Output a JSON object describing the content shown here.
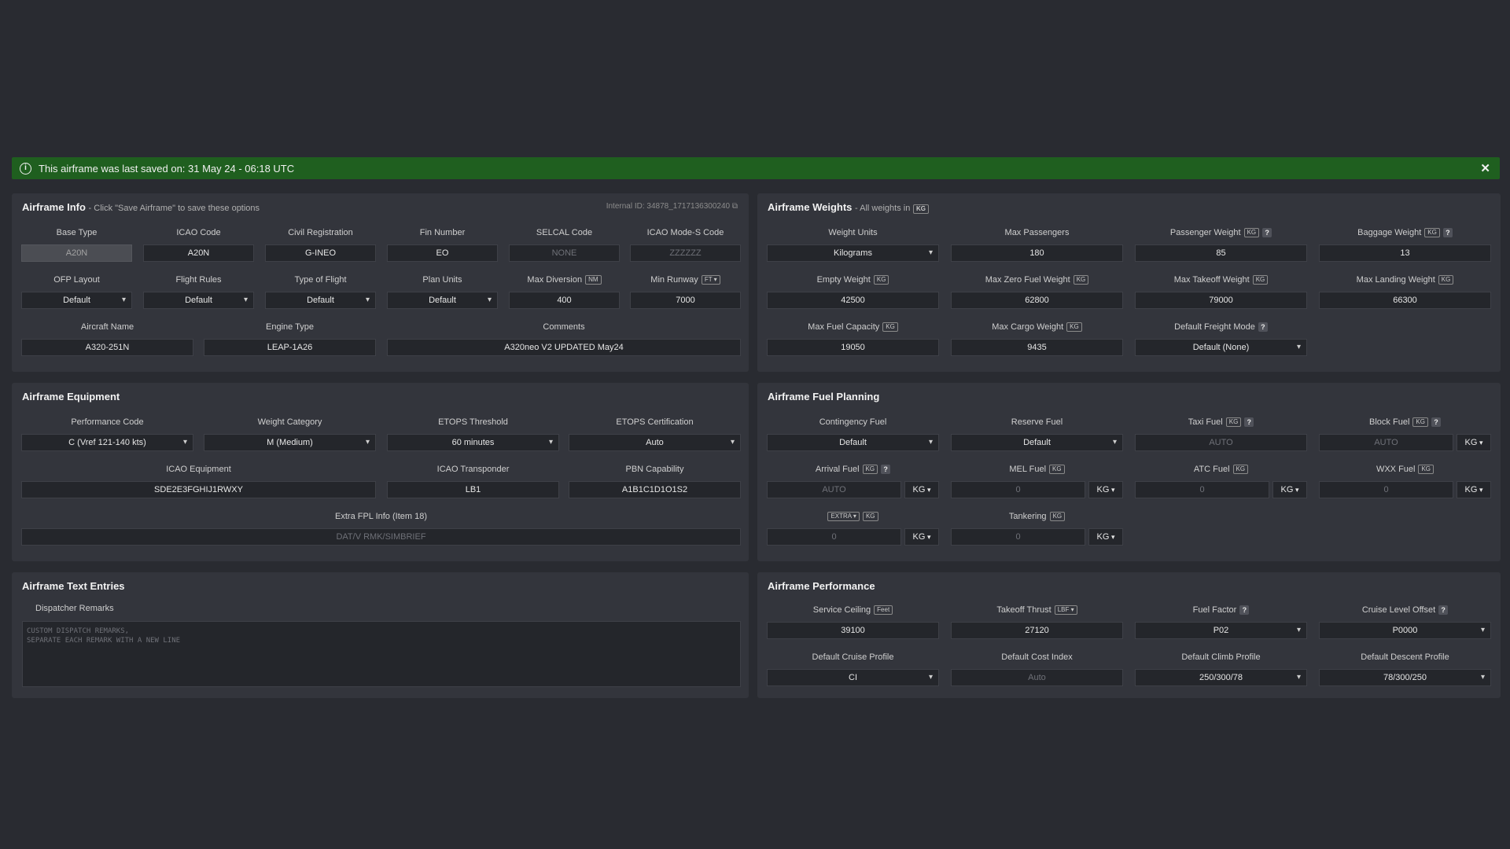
{
  "banner": {
    "message": "This airframe was last saved on: 31 May 24 - 06:18 UTC"
  },
  "info": {
    "title": "Airframe Info",
    "subtitle": "- Click \"Save Airframe\" to save these options",
    "internal_id": "Internal ID: 34878_1717136300240",
    "base_type": {
      "label": "Base Type",
      "value": "A20N"
    },
    "icao_code": {
      "label": "ICAO Code",
      "value": "A20N"
    },
    "civil_reg": {
      "label": "Civil Registration",
      "value": "G-INEO"
    },
    "fin_number": {
      "label": "Fin Number",
      "value": "EO"
    },
    "selcal": {
      "label": "SELCAL Code",
      "placeholder": "NONE"
    },
    "mode_s": {
      "label": "ICAO Mode-S Code",
      "placeholder": "ZZZZZZ"
    },
    "ofp_layout": {
      "label": "OFP Layout",
      "value": "Default"
    },
    "flight_rules": {
      "label": "Flight Rules",
      "value": "Default"
    },
    "type_of_flight": {
      "label": "Type of Flight",
      "value": "Default"
    },
    "plan_units": {
      "label": "Plan Units",
      "value": "Default"
    },
    "max_diversion": {
      "label": "Max Diversion",
      "unit": "NM",
      "value": "400"
    },
    "min_runway": {
      "label": "Min Runway",
      "unit": "FT",
      "value": "7000"
    },
    "aircraft_name": {
      "label": "Aircraft Name",
      "value": "A320-251N"
    },
    "engine_type": {
      "label": "Engine Type",
      "value": "LEAP-1A26"
    },
    "comments": {
      "label": "Comments",
      "value": "A320neo V2 UPDATED May24"
    }
  },
  "weights": {
    "title": "Airframe Weights",
    "subtitle": "- All weights in",
    "unit": "KG",
    "weight_units": {
      "label": "Weight Units",
      "value": "Kilograms"
    },
    "max_pax": {
      "label": "Max Passengers",
      "value": "180"
    },
    "pax_weight": {
      "label": "Passenger Weight",
      "value": "85"
    },
    "bag_weight": {
      "label": "Baggage Weight",
      "value": "13"
    },
    "empty_weight": {
      "label": "Empty Weight",
      "value": "42500"
    },
    "mzfw": {
      "label": "Max Zero Fuel Weight",
      "value": "62800"
    },
    "mtow": {
      "label": "Max Takeoff Weight",
      "value": "79000"
    },
    "mlw": {
      "label": "Max Landing Weight",
      "value": "66300"
    },
    "max_fuel": {
      "label": "Max Fuel Capacity",
      "value": "19050"
    },
    "max_cargo": {
      "label": "Max Cargo Weight",
      "value": "9435"
    },
    "freight_mode": {
      "label": "Default Freight Mode",
      "value": "Default (None)"
    }
  },
  "equipment": {
    "title": "Airframe Equipment",
    "perf_code": {
      "label": "Performance Code",
      "value": "C (Vref 121-140 kts)"
    },
    "weight_cat": {
      "label": "Weight Category",
      "value": "M (Medium)"
    },
    "etops_threshold": {
      "label": "ETOPS Threshold",
      "value": "60 minutes"
    },
    "etops_cert": {
      "label": "ETOPS Certification",
      "value": "Auto"
    },
    "icao_equip": {
      "label": "ICAO Equipment",
      "value": "SDE2E3FGHIJ1RWXY"
    },
    "icao_transponder": {
      "label": "ICAO Transponder",
      "value": "LB1"
    },
    "pbn": {
      "label": "PBN Capability",
      "value": "A1B1C1D1O1S2"
    },
    "extra_fpl": {
      "label": "Extra FPL Info (Item 18)",
      "placeholder": "DAT/V RMK/SIMBRIEF"
    }
  },
  "fuel": {
    "title": "Airframe Fuel Planning",
    "unit": "KG",
    "contingency": {
      "label": "Contingency Fuel",
      "value": "Default"
    },
    "reserve": {
      "label": "Reserve Fuel",
      "value": "Default"
    },
    "taxi": {
      "label": "Taxi Fuel",
      "placeholder": "AUTO"
    },
    "block": {
      "label": "Block Fuel",
      "placeholder": "AUTO"
    },
    "arrival": {
      "label": "Arrival Fuel",
      "placeholder": "AUTO"
    },
    "mel": {
      "label": "MEL Fuel",
      "placeholder": "0"
    },
    "atc": {
      "label": "ATC Fuel",
      "placeholder": "0"
    },
    "wxx": {
      "label": "WXX Fuel",
      "placeholder": "0"
    },
    "extra": {
      "label": "EXTRA",
      "placeholder": "0"
    },
    "tankering": {
      "label": "Tankering",
      "placeholder": "0"
    }
  },
  "text_entries": {
    "title": "Airframe Text Entries",
    "remarks_label": "Dispatcher Remarks",
    "remarks_placeholder": "CUSTOM DISPATCH REMARKS,\nSEPARATE EACH REMARK WITH A NEW LINE"
  },
  "performance": {
    "title": "Airframe Performance",
    "ceiling": {
      "label": "Service Ceiling",
      "unit": "Feet",
      "value": "39100"
    },
    "thrust": {
      "label": "Takeoff Thrust",
      "unit": "LBF",
      "value": "27120"
    },
    "fuel_factor": {
      "label": "Fuel Factor",
      "value": "P02"
    },
    "cruise_offset": {
      "label": "Cruise Level Offset",
      "value": "P0000"
    },
    "cruise_profile": {
      "label": "Default Cruise Profile",
      "value": "CI"
    },
    "cost_index": {
      "label": "Default Cost Index",
      "placeholder": "Auto"
    },
    "climb_profile": {
      "label": "Default Climb Profile",
      "value": "250/300/78"
    },
    "descent_profile": {
      "label": "Default Descent Profile",
      "value": "78/300/250"
    }
  }
}
